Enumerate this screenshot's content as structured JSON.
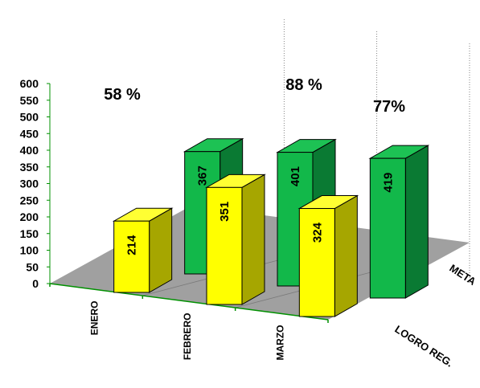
{
  "chart_data": {
    "type": "bar",
    "categories": [
      "ENERO",
      "FEBRERO",
      "MARZO"
    ],
    "series": [
      {
        "name": "LOGRO REG.",
        "values": [
          214,
          351,
          324
        ]
      },
      {
        "name": "META",
        "values": [
          367,
          401,
          419
        ]
      }
    ],
    "percentages": [
      "58 %",
      "88 %",
      "77%"
    ],
    "yticks": [
      0,
      50,
      100,
      150,
      200,
      250,
      300,
      350,
      400,
      450,
      500,
      550,
      600
    ],
    "ylim": [
      0,
      600
    ],
    "colors": {
      "logro_front": "#ffff00",
      "logro_side": "#a6a600",
      "logro_top": "#ffff33",
      "meta_front": "#12b84a",
      "meta_side": "#0a7a33",
      "meta_top": "#1dc254",
      "floor": "#a0a0a0",
      "axis": "#009000"
    },
    "view": "3d"
  }
}
